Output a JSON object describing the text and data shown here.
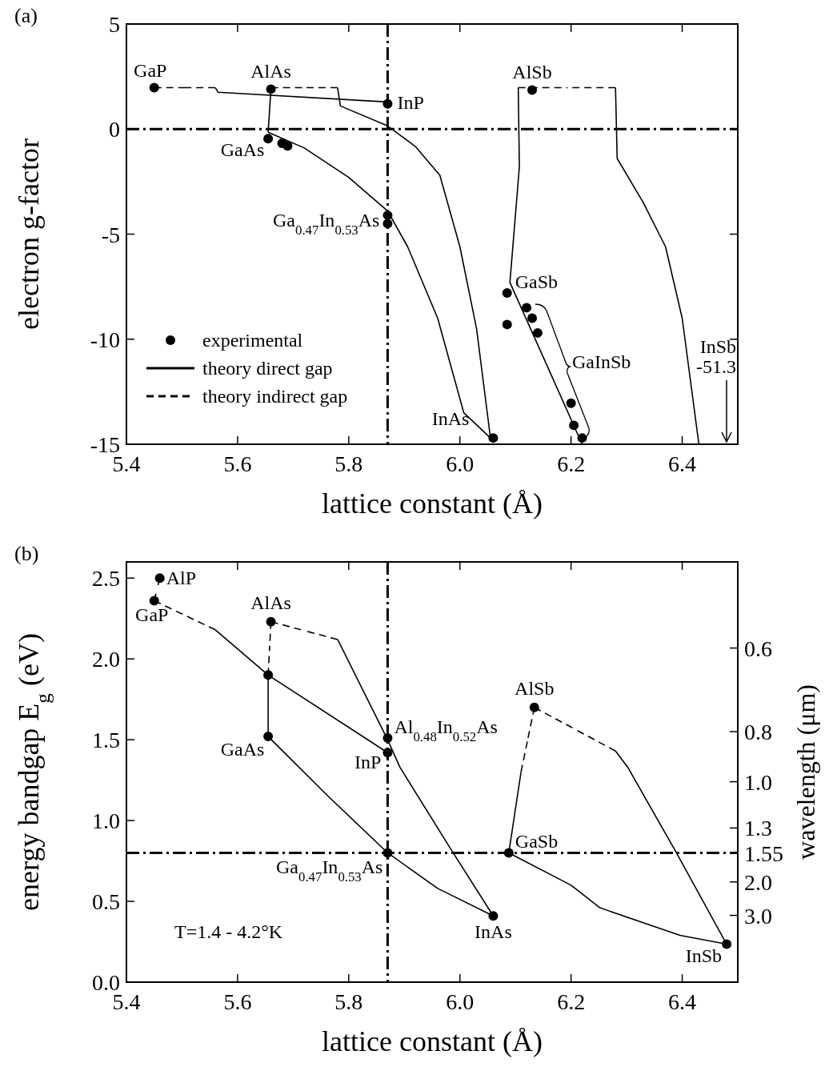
{
  "chart_data": [
    {
      "type": "line",
      "title": "(a)",
      "xlabel": "lattice constant (Å)",
      "ylabel": "electron g-factor",
      "xlim": [
        5.4,
        6.5
      ],
      "ylim": [
        -15,
        5
      ],
      "xticks": [
        5.4,
        5.6,
        5.8,
        {
          "value": 6,
          "label": "6.0"
        },
        6.2,
        6.4
      ],
      "yticks": [
        -15,
        -10,
        -5,
        0,
        5
      ],
      "grid": false,
      "legend": "bottom left",
      "series": [
        {
          "name": "experimental",
          "type": "scatter",
          "marker": "circle",
          "color": "#000000",
          "x": [
            5.45,
            5.66,
            5.87,
            6.13,
            5.655,
            5.68,
            5.69,
            5.87,
            5.87,
            6.06,
            6.085,
            6.085,
            6.12,
            6.13,
            6.14,
            6.2,
            6.205,
            6.22
          ],
          "values": [
            1.97,
            1.9,
            1.2,
            1.86,
            -0.46,
            -0.68,
            -0.8,
            -4.1,
            -4.5,
            -14.7,
            -7.8,
            -9.3,
            -8.5,
            -9.0,
            -9.7,
            -13.05,
            -14.1,
            -14.7
          ]
        },
        {
          "name": "theory direct gap",
          "line_style": "solid",
          "color": "#000000",
          "x": [
            5.56,
            5.565,
            5.87
          ],
          "values": [
            1.97,
            1.75,
            1.29
          ]
        },
        {
          "line_style": "solid",
          "color": "#000000",
          "x": [
            5.66,
            5.655
          ],
          "values": [
            1.9,
            -0.15
          ]
        },
        {
          "line_style": "solid",
          "color": "#000000",
          "x": [
            5.655,
            5.72,
            5.8,
            5.87,
            5.906,
            5.96,
            6.007,
            6.055
          ],
          "values": [
            -0.15,
            -0.9,
            -2.3,
            -3.9,
            -5.6,
            -9,
            -13.5,
            -14.7
          ]
        },
        {
          "line_style": "solid",
          "color": "#000000",
          "x": [
            5.78,
            5.785,
            5.87,
            5.92,
            5.964,
            6.0,
            6.03,
            6.055
          ],
          "values": [
            1.97,
            1.1,
            0.15,
            -0.83,
            -2.2,
            -5.6,
            -9.5,
            -14.7
          ]
        },
        {
          "line_style": "solid",
          "color": "#000000",
          "x": [
            6.105,
            6.107,
            6.09,
            6.22
          ],
          "values": [
            1.97,
            -1.8,
            -7.3,
            -15
          ]
        },
        {
          "line_style": "solid",
          "color": "#000000",
          "x": [
            6.28,
            6.283,
            6.33,
            6.37,
            6.4,
            6.43
          ],
          "values": [
            1.97,
            -1.4,
            -3.5,
            -5.6,
            -9,
            -15
          ]
        },
        {
          "name": "theory indirect gap",
          "line_style": "dashed",
          "color": "#000000",
          "x": [
            5.45,
            5.56
          ],
          "values": [
            1.97,
            1.97
          ]
        },
        {
          "line_style": "dashed",
          "color": "#000000",
          "x": [
            5.66,
            5.78
          ],
          "values": [
            1.97,
            1.97
          ]
        },
        {
          "line_style": "dashed",
          "color": "#000000",
          "x": [
            6.105,
            6.28
          ],
          "values": [
            1.97,
            1.97
          ]
        }
      ],
      "ref_lines": [
        {
          "axis": "x",
          "value": 5.87,
          "color": "#000000",
          "line_style": "dashdot"
        },
        {
          "axis": "y",
          "value": 0,
          "color": "#000000",
          "line_style": "dashdot"
        }
      ],
      "annotations": [
        {
          "text": "GaP",
          "x": 5.45,
          "y": 1.97
        },
        {
          "text": "AlAs",
          "x": 5.66,
          "y": 1.9
        },
        {
          "text": "InP",
          "x": 5.87,
          "y": 1.2
        },
        {
          "text": "AlSb",
          "x": 6.13,
          "y": 1.86
        },
        {
          "text": "GaAs",
          "x": 5.655,
          "y": -0.46
        },
        {
          "text": "Ga$_{0.47}$In$_{0.53}$As",
          "x": 5.87,
          "y": -4.5
        },
        {
          "text": "GaSb",
          "x": 6.085,
          "y": -7.8
        },
        "GaInSb",
        {
          "text": "InAs",
          "x": 6.06,
          "y": -14.7
        },
        "InSb\n-51.3"
      ]
    },
    {
      "type": "line",
      "title": "(b)",
      "xlabel": "lattice constant (Å)",
      "ylabel": "energy bandgap E$_{g}$ (eV)",
      "y2label": "wavelength (μm)",
      "xlim": [
        5.4,
        6.5
      ],
      "ylim": [
        0,
        2.6
      ],
      "xticks": [
        5.4,
        5.6,
        5.8,
        {
          "value": 6,
          "label": "6.0"
        },
        6.2,
        6.4
      ],
      "yticks": [
        {
          "value": 0,
          "label": "0.0"
        },
        0.5,
        {
          "value": 1,
          "label": "1.0"
        },
        1.5,
        {
          "value": 2,
          "label": "2.0"
        },
        2.5
      ],
      "grid": false,
      "series": [
        {
          "type": "scatter",
          "marker": "circle",
          "color": "#000000",
          "x": [
            5.46,
            5.45,
            5.66,
            5.655,
            5.655,
            5.87,
            5.87,
            5.87,
            6.06,
            6.134,
            6.088,
            6.48
          ],
          "values": [
            2.5,
            2.36,
            2.23,
            1.9,
            1.52,
            1.51,
            1.42,
            0.8,
            0.41,
            1.7,
            0.8,
            0.235
          ]
        },
        {
          "line_style": "solid",
          "color": "#000000",
          "x": [
            5.56,
            5.655,
            5.87
          ],
          "values": [
            2.18,
            1.9,
            1.42
          ]
        },
        {
          "line_style": "solid",
          "color": "#000000",
          "x": [
            5.655,
            5.655
          ],
          "values": [
            1.9,
            1.52
          ]
        },
        {
          "line_style": "solid",
          "color": "#000000",
          "x": [
            5.655,
            5.76,
            5.87,
            5.96,
            6.06
          ],
          "values": [
            1.52,
            1.16,
            0.8,
            0.58,
            0.41
          ]
        },
        {
          "line_style": "solid",
          "color": "#000000",
          "x": [
            5.78,
            5.87,
            5.892,
            5.986,
            6.06
          ],
          "values": [
            2.12,
            1.5,
            1.33,
            0.81,
            0.41
          ]
        },
        {
          "line_style": "solid",
          "color": "#000000",
          "x": [
            6.088,
            6.11
          ],
          "values": [
            0.8,
            1.3
          ]
        },
        {
          "line_style": "solid",
          "color": "#000000",
          "x": [
            6.088,
            6.2,
            6.252,
            6.396,
            6.48
          ],
          "values": [
            0.8,
            0.6,
            0.46,
            0.29,
            0.235
          ]
        },
        {
          "line_style": "solid",
          "color": "#000000",
          "x": [
            6.28,
            6.302,
            6.388,
            6.48
          ],
          "values": [
            1.43,
            1.33,
            0.81,
            0.235
          ]
        },
        {
          "line_style": "dashed",
          "color": "#000000",
          "x": [
            5.46,
            5.45,
            5.56
          ],
          "values": [
            2.5,
            2.36,
            2.18
          ]
        },
        {
          "line_style": "dashed",
          "color": "#000000",
          "x": [
            5.655,
            5.66,
            5.78
          ],
          "values": [
            1.9,
            2.23,
            2.12
          ]
        },
        {
          "line_style": "dashed",
          "color": "#000000",
          "x": [
            6.11,
            6.134,
            6.28
          ],
          "values": [
            1.3,
            1.7,
            1.43
          ]
        }
      ],
      "ref_lines": [
        {
          "axis": "x",
          "value": 5.87,
          "color": "#000000",
          "line_style": "dashdot"
        },
        {
          "axis": "y",
          "value": 0.8,
          "color": "#000000",
          "line_style": "dashdot"
        }
      ],
      "annotations": [
        {
          "text": "AlP",
          "x": 5.46,
          "y": 2.5
        },
        {
          "text": "GaP",
          "x": 5.45,
          "y": 2.36
        },
        {
          "text": "AlAs",
          "x": 5.66,
          "y": 2.23
        },
        {
          "text": "GaAs",
          "x": 5.655,
          "y": 1.52
        },
        {
          "text": "Al$_{0.48}$In$_{0.52}$As",
          "x": 5.87,
          "y": 1.51
        },
        {
          "text": "InP",
          "x": 5.87,
          "y": 1.42
        },
        {
          "text": "Ga$_{0.47}$In$_{0.53}$As",
          "x": 5.87,
          "y": 0.8
        },
        {
          "text": "InAs",
          "x": 6.06,
          "y": 0.41
        },
        {
          "text": "AlSb",
          "x": 6.134,
          "y": 1.7
        },
        {
          "text": "GaSb",
          "x": 6.088,
          "y": 0.8
        },
        {
          "text": "InSb",
          "x": 6.48,
          "y": 0.235
        },
        "T=1.4 - 4.2°K",
        "0.6",
        "0.8",
        "1.0",
        "1.3",
        "1.55",
        "2.0",
        "3.0"
      ]
    }
  ]
}
